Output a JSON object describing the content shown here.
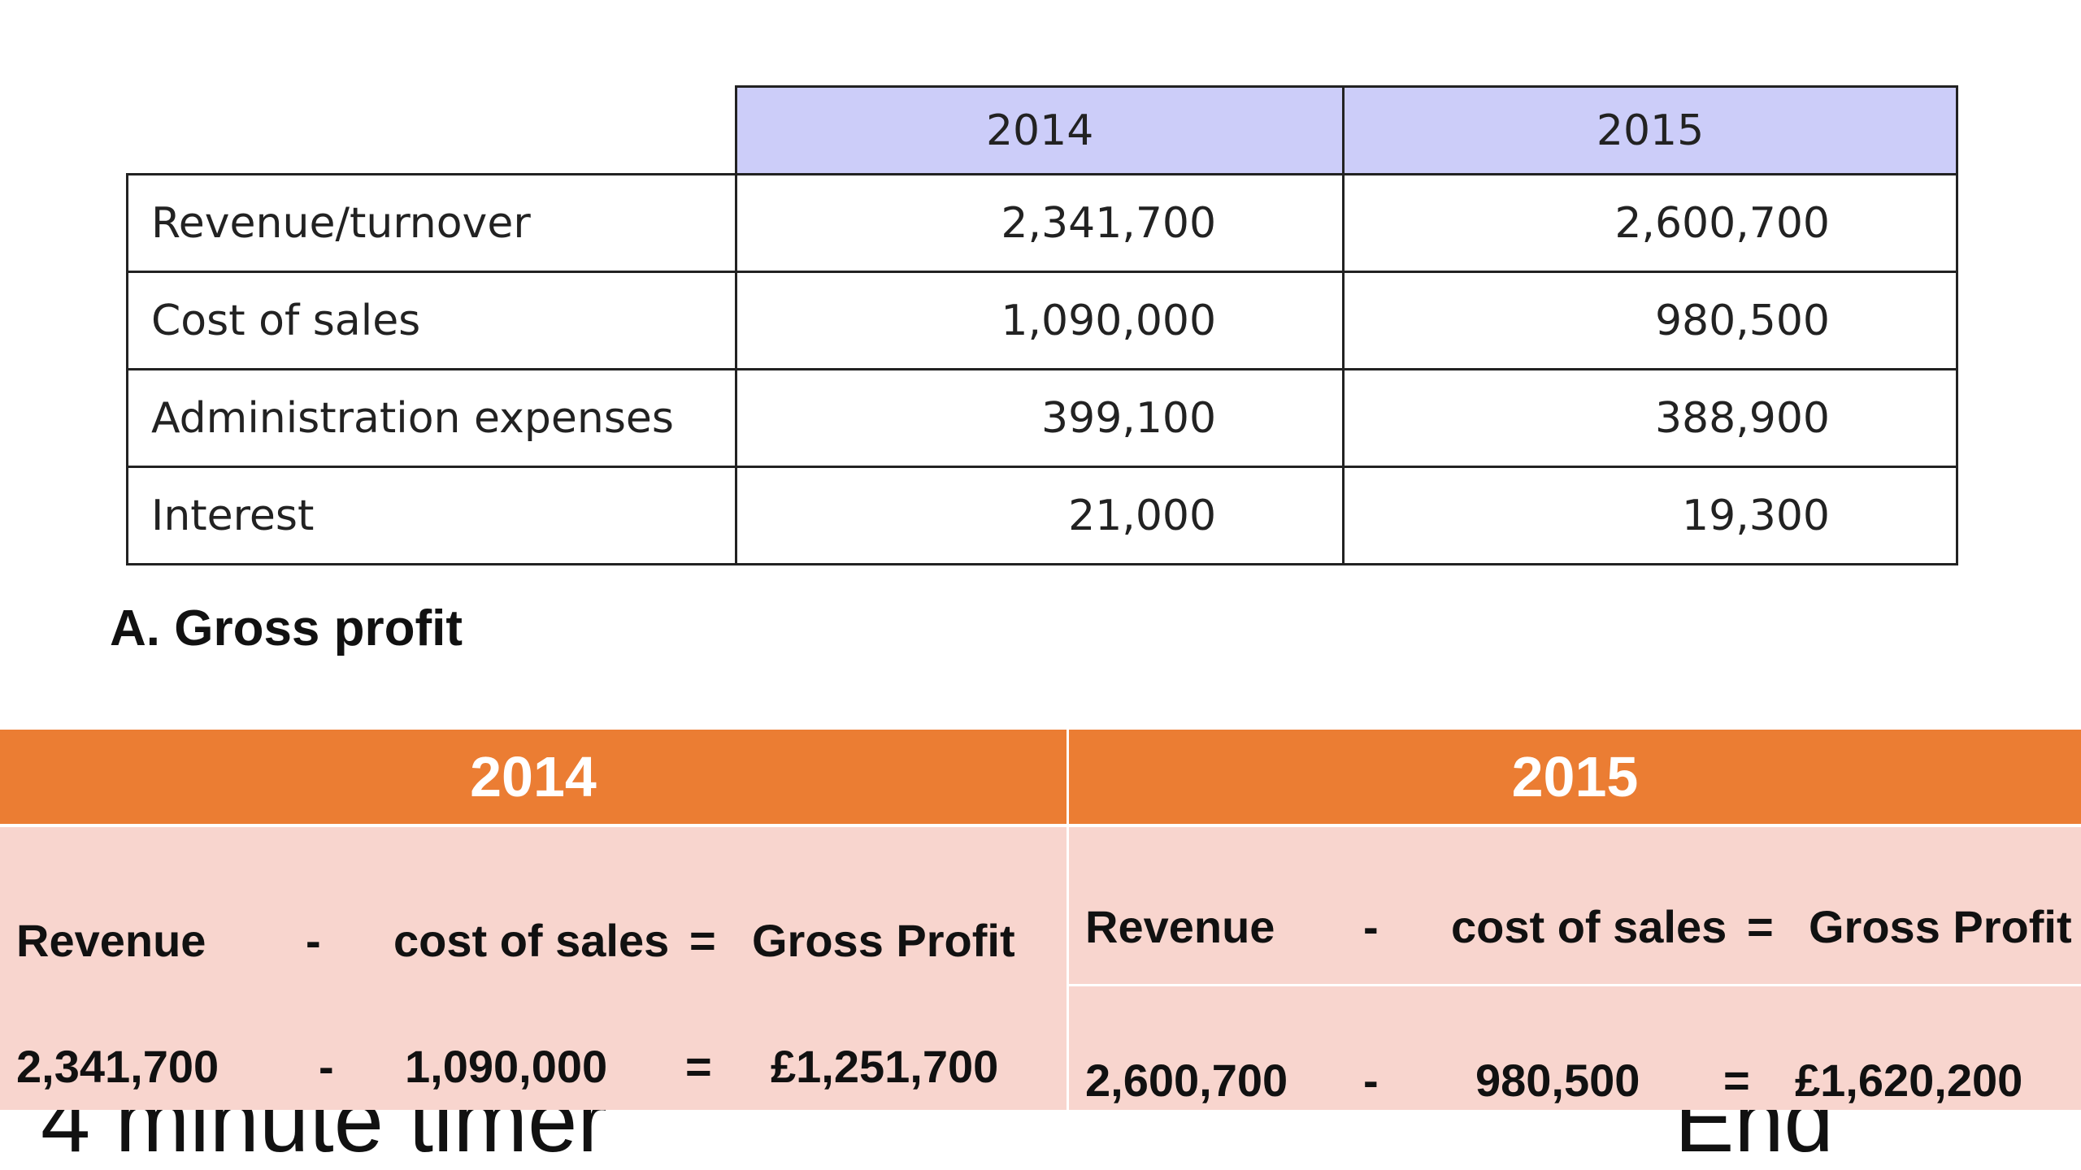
{
  "table": {
    "headers": [
      "",
      "2014",
      "2015"
    ],
    "rows": [
      {
        "label": "Revenue/turnover",
        "y2014": "2,341,700",
        "y2015": "2,600,700"
      },
      {
        "label": "Cost of sales",
        "y2014": "1,090,000",
        "y2015": "980,500"
      },
      {
        "label": "Administration expenses",
        "y2014": "399,100",
        "y2015": "388,900"
      },
      {
        "label": "Interest",
        "y2014": "21,000",
        "y2015": "19,300"
      }
    ]
  },
  "section_heading": "A. Gross profit",
  "answer": {
    "left": {
      "year": "2014",
      "formula": {
        "a": "Revenue",
        "op1": "-",
        "b": "cost of sales",
        "op2": "=",
        "c": "Gross Profit"
      },
      "calc": {
        "a": "2,341,700",
        "op1": "-",
        "b": "1,090,000",
        "op2": "=",
        "c": "£1,251,700"
      }
    },
    "right": {
      "year": "2015",
      "formula": {
        "a": "Revenue",
        "op1": "-",
        "b": "cost of sales",
        "op2": "=",
        "c": "Gross Profit"
      },
      "calc": {
        "a": "2,600,700",
        "op1": "-",
        "b": "980,500",
        "op2": "=",
        "c": "£1,620,200"
      }
    }
  },
  "background": {
    "timer_text": "4 minute timer",
    "end_text": "End"
  }
}
